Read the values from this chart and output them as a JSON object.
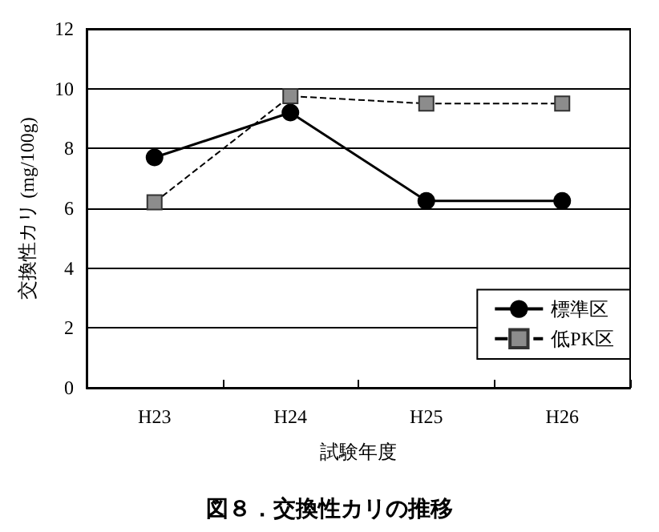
{
  "chart_data": {
    "type": "line",
    "title": "図８．交換性カリの推移",
    "xlabel": "試験年度",
    "ylabel": "交換性カリ (mg/100g)",
    "categories": [
      "H23",
      "H24",
      "H25",
      "H26"
    ],
    "series": [
      {
        "name": "標準区",
        "color": "#000000",
        "marker": "circle",
        "line_style": "solid",
        "values": [
          7.7,
          9.2,
          6.25,
          6.25
        ]
      },
      {
        "name": "低PK区",
        "color": "#8c8c8c",
        "marker": "square",
        "line_style": "dashed",
        "values": [
          6.2,
          9.75,
          9.5,
          9.5
        ]
      }
    ],
    "ylim": [
      0,
      12
    ],
    "yticks": [
      0,
      2,
      4,
      6,
      8,
      10,
      12
    ],
    "grid": "y",
    "legend": "bottom right"
  }
}
